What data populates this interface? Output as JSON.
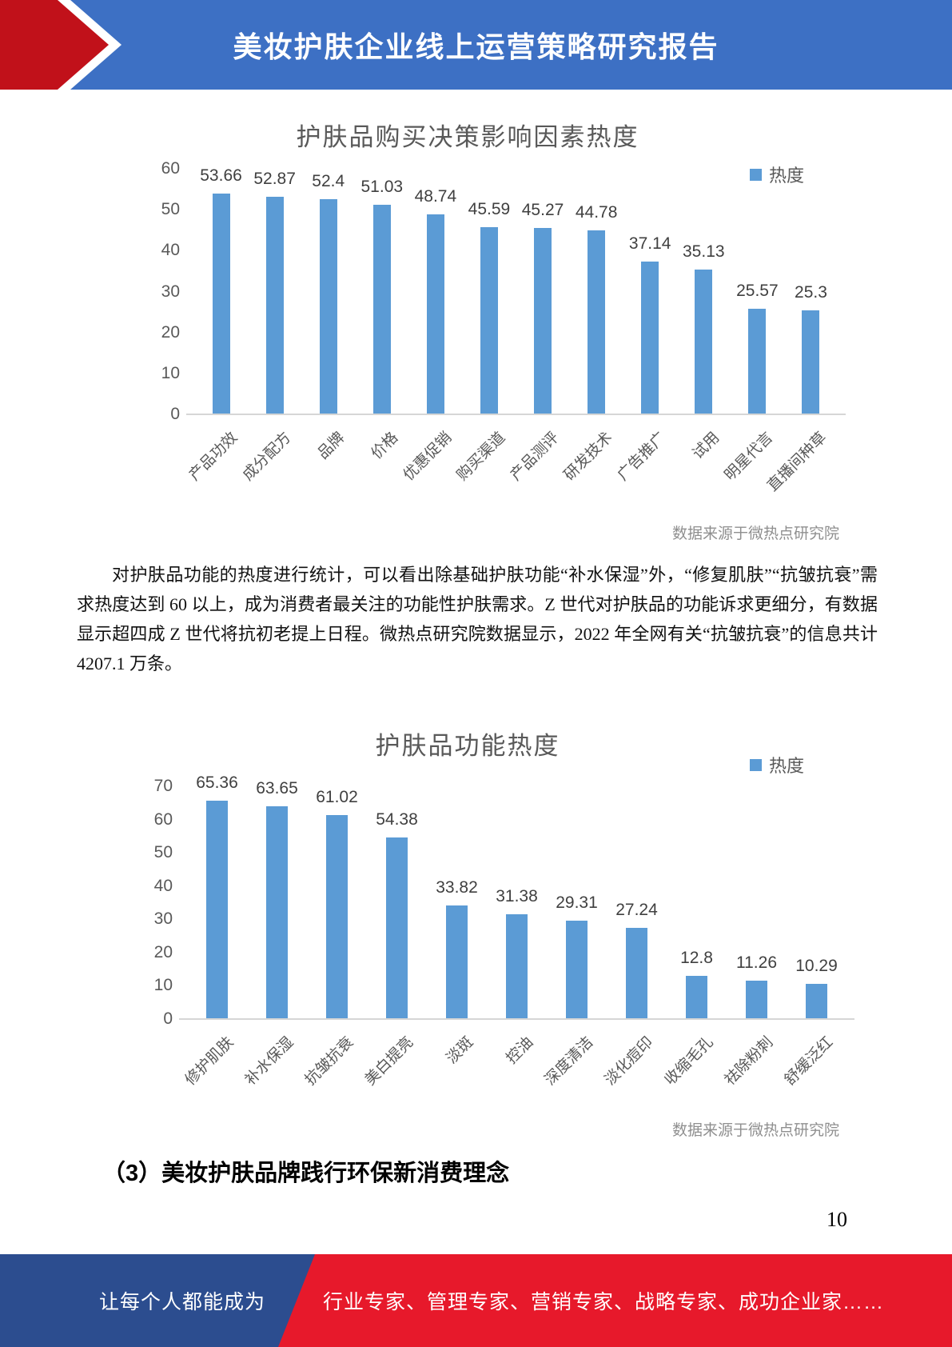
{
  "header": {
    "title": "美妆护肤企业线上运营策略研究报告"
  },
  "chart_data": [
    {
      "type": "bar",
      "title": "护肤品购买决策影响因素热度",
      "legend": [
        "热度"
      ],
      "legend_position": "top-right",
      "categories": [
        "产品功效",
        "成分配方",
        "品牌",
        "价格",
        "优惠促销",
        "购买渠道",
        "产品测评",
        "研发技术",
        "广告推广",
        "试用",
        "明星代言",
        "直播间种草"
      ],
      "values": [
        53.66,
        52.87,
        52.4,
        51.03,
        48.74,
        45.59,
        45.27,
        44.78,
        37.14,
        35.13,
        25.57,
        25.3
      ],
      "xlabel": "",
      "ylabel": "",
      "ylim": [
        0,
        60
      ],
      "ytick_step": 10,
      "grid": false,
      "bar_color": "#5b9bd5",
      "source": "数据来源于微热点研究院"
    },
    {
      "type": "bar",
      "title": "护肤品功能热度",
      "legend": [
        "热度"
      ],
      "legend_position": "top-right",
      "categories": [
        "修护肌肤",
        "补水保湿",
        "抗皱抗衰",
        "美白提亮",
        "淡斑",
        "控油",
        "深度清洁",
        "淡化痘印",
        "收缩毛孔",
        "祛除粉刺",
        "舒缓泛红"
      ],
      "values": [
        65.36,
        63.65,
        61.02,
        54.38,
        33.82,
        31.38,
        29.31,
        27.24,
        12.8,
        11.26,
        10.29
      ],
      "xlabel": "",
      "ylabel": "",
      "ylim": [
        0,
        70
      ],
      "ytick_step": 10,
      "grid": false,
      "bar_color": "#5b9bd5",
      "source": "数据来源于微热点研究院"
    }
  ],
  "paragraph": "对护肤品功能的热度进行统计，可以看出除基础护肤功能“补水保湿”外，“修复肌肤”“抗皱抗衰”需求热度达到 60 以上，成为消费者最关注的功能性护肤需求。Z 世代对护肤品的功能诉求更细分，有数据显示超四成 Z 世代将抗初老提上日程。微热点研究院数据显示，2022 年全网有关“抗皱抗衰”的信息共计 4207.1 万条。",
  "section_heading": "（3）美妆护肤品牌践行环保新消费理念",
  "page_number": "10",
  "footer": {
    "left_text": "让每个人都能成为",
    "right_text": "行业专家、管理专家、营销专家、战略专家、成功企业家……"
  },
  "colors": {
    "header_blue": "#3d70c4",
    "arrow_red": "#c1111a",
    "bar_blue": "#5b9bd5",
    "footer_blue": "#2c4d8f",
    "footer_red": "#e7192b"
  }
}
